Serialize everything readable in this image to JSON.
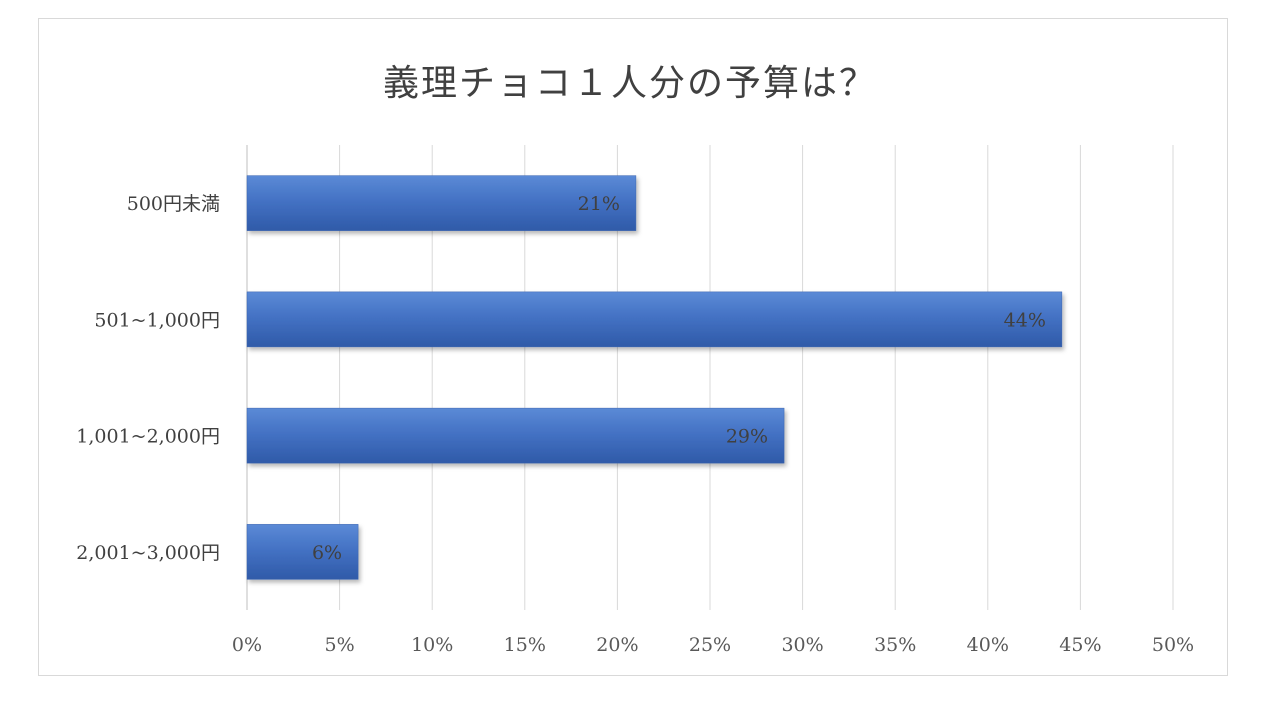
{
  "chart_data": {
    "type": "bar",
    "orientation": "horizontal",
    "title": "義理チョコ１人分の予算は？",
    "categories": [
      "500円未満",
      "501~1,000円",
      "1,001~2,000円",
      "2,001~3,000円"
    ],
    "values": [
      21,
      44,
      29,
      6
    ],
    "data_labels": [
      "21%",
      "44%",
      "29%",
      "6%"
    ],
    "x_ticks": [
      "0%",
      "5%",
      "10%",
      "15%",
      "20%",
      "25%",
      "30%",
      "35%",
      "40%",
      "45%",
      "50%"
    ],
    "xlim": [
      0,
      50
    ],
    "grid": true,
    "legend": "none",
    "bar_color": "#4472c4"
  }
}
